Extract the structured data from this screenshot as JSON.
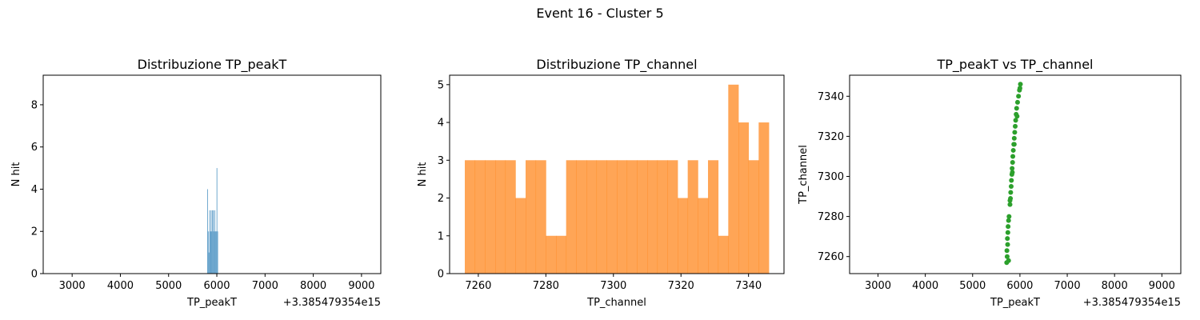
{
  "figure": {
    "suptitle": "Event 16 - Cluster 5"
  },
  "chart_data": [
    {
      "type": "bar",
      "chart_kind": "histogram",
      "title": "Distribuzione TP_peakT",
      "xlabel": "TP_peakT",
      "ylabel": "N hit",
      "offset_text": "+3.385479354e15",
      "color": "#1f77b4",
      "opacity": 0.7,
      "xlim": [
        2400,
        9400
      ],
      "ylim": [
        0,
        9.4
      ],
      "xticks": [
        3000,
        4000,
        5000,
        6000,
        7000,
        8000,
        9000
      ],
      "yticks": [
        0,
        2,
        4,
        6,
        8
      ],
      "bins": [
        {
          "x0": 5800,
          "x1": 5815,
          "count": 4
        },
        {
          "x0": 5815,
          "x1": 5830,
          "count": 2
        },
        {
          "x0": 5830,
          "x1": 5845,
          "count": 1
        },
        {
          "x0": 5845,
          "x1": 5860,
          "count": 3
        },
        {
          "x0": 5860,
          "x1": 5875,
          "count": 2
        },
        {
          "x0": 5875,
          "x1": 5890,
          "count": 3
        },
        {
          "x0": 5890,
          "x1": 5905,
          "count": 2
        },
        {
          "x0": 5905,
          "x1": 5920,
          "count": 3
        },
        {
          "x0": 5920,
          "x1": 5935,
          "count": 3
        },
        {
          "x0": 5935,
          "x1": 5950,
          "count": 2
        },
        {
          "x0": 5950,
          "x1": 5965,
          "count": 3
        },
        {
          "x0": 5965,
          "x1": 5980,
          "count": 2
        },
        {
          "x0": 5980,
          "x1": 5995,
          "count": 2
        },
        {
          "x0": 5995,
          "x1": 6010,
          "count": 5
        },
        {
          "x0": 6010,
          "x1": 6025,
          "count": 2
        }
      ]
    },
    {
      "type": "bar",
      "chart_kind": "histogram",
      "title": "Distribuzione TP_channel",
      "xlabel": "TP_channel",
      "ylabel": "N hit",
      "color": "#ff7f0e",
      "opacity": 0.7,
      "xlim": [
        7251.5,
        7350.5
      ],
      "ylim": [
        0,
        5.25
      ],
      "xticks": [
        7260,
        7280,
        7300,
        7320,
        7340
      ],
      "yticks": [
        0,
        1,
        2,
        3,
        4,
        5
      ],
      "bin_start": 7256,
      "bin_width": 3,
      "counts": [
        3,
        3,
        3,
        3,
        3,
        2,
        3,
        3,
        1,
        1,
        3,
        3,
        3,
        3,
        3,
        3,
        3,
        3,
        3,
        3,
        3,
        2,
        3,
        2,
        3,
        1,
        5,
        4,
        3,
        4
      ]
    },
    {
      "type": "scatter",
      "title": "TP_peakT vs TP_channel",
      "xlabel": "TP_peakT",
      "ylabel": "TP_channel",
      "offset_text": "+3.385479354e15",
      "color": "#2ca02c",
      "xlim": [
        2400,
        9400
      ],
      "ylim": [
        7251.5,
        7350.5
      ],
      "xticks": [
        3000,
        4000,
        5000,
        6000,
        7000,
        8000,
        9000
      ],
      "yticks": [
        7260,
        7280,
        7300,
        7320,
        7340
      ],
      "points": [
        [
          5720,
          7257
        ],
        [
          5730,
          7260
        ],
        [
          5725,
          7263
        ],
        [
          5740,
          7266
        ],
        [
          5735,
          7269
        ],
        [
          5745,
          7272
        ],
        [
          5750,
          7275
        ],
        [
          5760,
          7278
        ],
        [
          5770,
          7280
        ],
        [
          5790,
          7286
        ],
        [
          5800,
          7289
        ],
        [
          5805,
          7292
        ],
        [
          5815,
          7295
        ],
        [
          5820,
          7298
        ],
        [
          5830,
          7301
        ],
        [
          5835,
          7304
        ],
        [
          5845,
          7307
        ],
        [
          5850,
          7310
        ],
        [
          5860,
          7313
        ],
        [
          5870,
          7316
        ],
        [
          5880,
          7319
        ],
        [
          5890,
          7322
        ],
        [
          5900,
          7325
        ],
        [
          5910,
          7328
        ],
        [
          5920,
          7331
        ],
        [
          5930,
          7334
        ],
        [
          5950,
          7337
        ],
        [
          5970,
          7340
        ],
        [
          5990,
          7343
        ],
        [
          6010,
          7346
        ],
        [
          5760,
          7258
        ],
        [
          5790,
          7288
        ],
        [
          5840,
          7302
        ],
        [
          5880,
          7316
        ],
        [
          5940,
          7330
        ],
        [
          6000,
          7344
        ]
      ]
    }
  ]
}
